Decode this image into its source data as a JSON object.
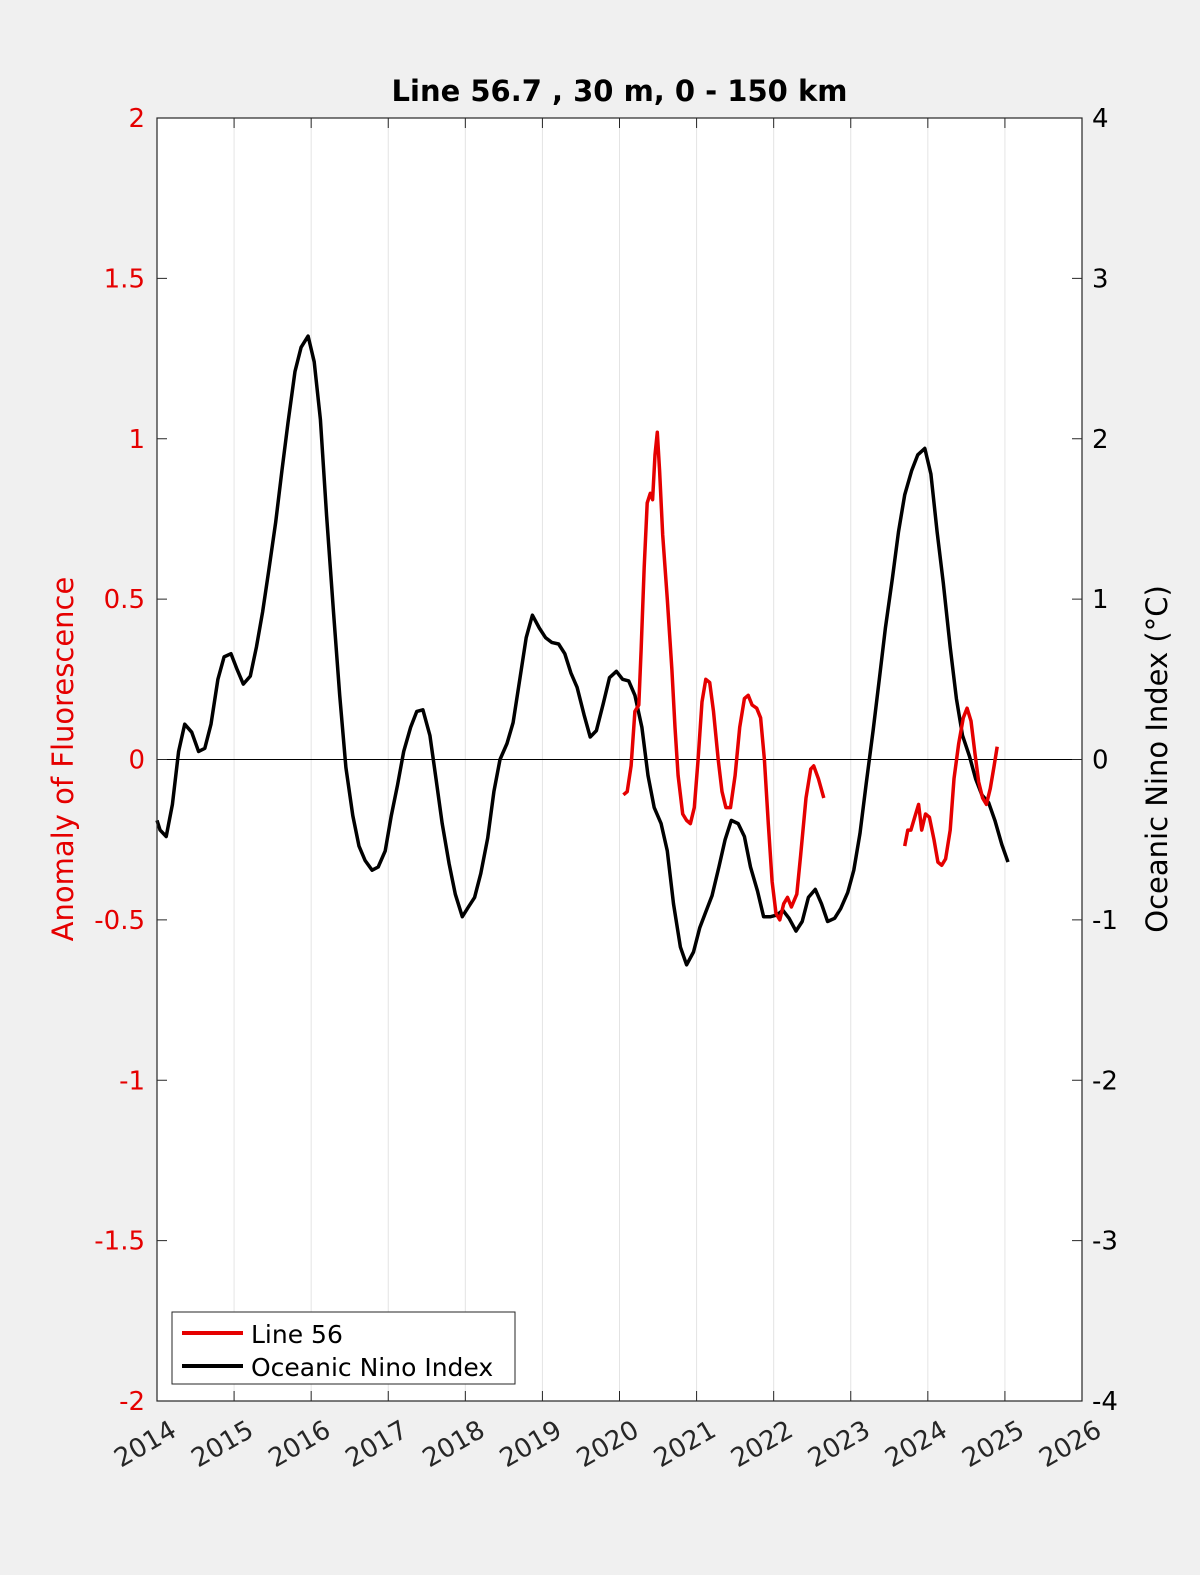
{
  "chart_data": {
    "type": "line",
    "title": "Line 56.7 , 30 m, 0 - 150 km",
    "xlabel": "",
    "ylabel_left": "Anomaly of Fluorescence",
    "ylabel_right": "Oceanic Nino Index (°C)",
    "xlim": [
      2014,
      2026
    ],
    "ylim_left": [
      -2,
      2
    ],
    "ylim_right": [
      -4,
      4
    ],
    "x_ticks": [
      "2014",
      "2015",
      "2016",
      "2017",
      "2018",
      "2019",
      "2020",
      "2021",
      "2022",
      "2023",
      "2024",
      "2025",
      "2026"
    ],
    "y_ticks_left": [
      "2",
      "1.5",
      "1",
      "0.5",
      "0",
      "-0.5",
      "-1",
      "-1.5",
      "-2"
    ],
    "y_ticks_right": [
      "4",
      "3",
      "2",
      "1",
      "0",
      "-1",
      "-2",
      "-3",
      "-4"
    ],
    "grid": "vertical",
    "zero_line": 0,
    "legend_position": "bottom-left",
    "colors": {
      "line56": "#e50000",
      "oni": "#000000",
      "left_axis": "#e50000",
      "right_axis": "#000000"
    },
    "series": [
      {
        "name": "Line 56",
        "axis": "left",
        "segments": [
          [
            [
              2020.05,
              -0.11
            ],
            [
              2020.1,
              -0.1
            ],
            [
              2020.15,
              -0.02
            ],
            [
              2020.2,
              0.15
            ],
            [
              2020.25,
              0.17
            ],
            [
              2020.28,
              0.34
            ],
            [
              2020.32,
              0.6
            ],
            [
              2020.36,
              0.8
            ],
            [
              2020.4,
              0.83
            ],
            [
              2020.43,
              0.81
            ],
            [
              2020.46,
              0.95
            ],
            [
              2020.49,
              1.02
            ],
            [
              2020.52,
              0.9
            ],
            [
              2020.56,
              0.7
            ],
            [
              2020.62,
              0.5
            ],
            [
              2020.68,
              0.28
            ],
            [
              2020.72,
              0.1
            ],
            [
              2020.76,
              -0.05
            ],
            [
              2020.82,
              -0.17
            ],
            [
              2020.87,
              -0.19
            ],
            [
              2020.92,
              -0.2
            ],
            [
              2020.97,
              -0.15
            ],
            [
              2021.02,
              0.0
            ],
            [
              2021.07,
              0.18
            ],
            [
              2021.12,
              0.25
            ],
            [
              2021.17,
              0.24
            ],
            [
              2021.22,
              0.15
            ],
            [
              2021.28,
              0.0
            ],
            [
              2021.33,
              -0.1
            ],
            [
              2021.38,
              -0.15
            ],
            [
              2021.44,
              -0.15
            ],
            [
              2021.5,
              -0.05
            ],
            [
              2021.56,
              0.1
            ],
            [
              2021.62,
              0.19
            ],
            [
              2021.67,
              0.2
            ],
            [
              2021.72,
              0.17
            ],
            [
              2021.78,
              0.16
            ],
            [
              2021.83,
              0.13
            ],
            [
              2021.88,
              0.0
            ],
            [
              2021.93,
              -0.2
            ],
            [
              2021.98,
              -0.38
            ],
            [
              2022.03,
              -0.48
            ],
            [
              2022.08,
              -0.5
            ],
            [
              2022.13,
              -0.45
            ],
            [
              2022.18,
              -0.43
            ],
            [
              2022.23,
              -0.46
            ],
            [
              2022.3,
              -0.42
            ],
            [
              2022.35,
              -0.3
            ],
            [
              2022.42,
              -0.12
            ],
            [
              2022.48,
              -0.03
            ],
            [
              2022.52,
              -0.02
            ],
            [
              2022.58,
              -0.06
            ],
            [
              2022.65,
              -0.12
            ]
          ],
          [
            [
              2023.7,
              -0.27
            ],
            [
              2023.74,
              -0.22
            ],
            [
              2023.78,
              -0.22
            ],
            [
              2023.83,
              -0.18
            ],
            [
              2023.88,
              -0.14
            ],
            [
              2023.92,
              -0.22
            ],
            [
              2023.97,
              -0.17
            ],
            [
              2024.02,
              -0.18
            ],
            [
              2024.08,
              -0.25
            ],
            [
              2024.13,
              -0.32
            ],
            [
              2024.18,
              -0.33
            ],
            [
              2024.23,
              -0.31
            ],
            [
              2024.29,
              -0.22
            ],
            [
              2024.34,
              -0.06
            ],
            [
              2024.4,
              0.05
            ],
            [
              2024.46,
              0.13
            ],
            [
              2024.51,
              0.16
            ],
            [
              2024.56,
              0.12
            ],
            [
              2024.61,
              0.02
            ],
            [
              2024.66,
              -0.07
            ],
            [
              2024.71,
              -0.12
            ],
            [
              2024.76,
              -0.14
            ],
            [
              2024.81,
              -0.09
            ],
            [
              2024.86,
              -0.02
            ],
            [
              2024.9,
              0.04
            ]
          ]
        ]
      },
      {
        "name": "Oceanic Nino Index",
        "axis": "right",
        "points": [
          [
            2014.0,
            -0.38
          ],
          [
            2014.04,
            -0.44
          ],
          [
            2014.12,
            -0.48
          ],
          [
            2014.2,
            -0.28
          ],
          [
            2014.28,
            0.05
          ],
          [
            2014.36,
            0.22
          ],
          [
            2014.45,
            0.17
          ],
          [
            2014.54,
            0.05
          ],
          [
            2014.62,
            0.07
          ],
          [
            2014.7,
            0.22
          ],
          [
            2014.79,
            0.5
          ],
          [
            2014.87,
            0.64
          ],
          [
            2014.96,
            0.66
          ],
          [
            2015.04,
            0.56
          ],
          [
            2015.12,
            0.47
          ],
          [
            2015.21,
            0.52
          ],
          [
            2015.29,
            0.7
          ],
          [
            2015.37,
            0.92
          ],
          [
            2015.45,
            1.18
          ],
          [
            2015.54,
            1.48
          ],
          [
            2015.62,
            1.8
          ],
          [
            2015.7,
            2.1
          ],
          [
            2015.79,
            2.42
          ],
          [
            2015.87,
            2.57
          ],
          [
            2015.96,
            2.64
          ],
          [
            2016.04,
            2.48
          ],
          [
            2016.12,
            2.12
          ],
          [
            2016.2,
            1.52
          ],
          [
            2016.29,
            0.92
          ],
          [
            2016.37,
            0.4
          ],
          [
            2016.45,
            -0.05
          ],
          [
            2016.54,
            -0.35
          ],
          [
            2016.62,
            -0.54
          ],
          [
            2016.7,
            -0.63
          ],
          [
            2016.79,
            -0.69
          ],
          [
            2016.87,
            -0.67
          ],
          [
            2016.96,
            -0.57
          ],
          [
            2017.04,
            -0.35
          ],
          [
            2017.12,
            -0.16
          ],
          [
            2017.2,
            0.05
          ],
          [
            2017.29,
            0.2
          ],
          [
            2017.37,
            0.3
          ],
          [
            2017.45,
            0.31
          ],
          [
            2017.54,
            0.15
          ],
          [
            2017.62,
            -0.12
          ],
          [
            2017.7,
            -0.4
          ],
          [
            2017.79,
            -0.65
          ],
          [
            2017.87,
            -0.84
          ],
          [
            2017.96,
            -0.98
          ],
          [
            2018.04,
            -0.92
          ],
          [
            2018.12,
            -0.86
          ],
          [
            2018.2,
            -0.71
          ],
          [
            2018.29,
            -0.49
          ],
          [
            2018.37,
            -0.2
          ],
          [
            2018.45,
            0.0
          ],
          [
            2018.54,
            0.1
          ],
          [
            2018.62,
            0.23
          ],
          [
            2018.7,
            0.48
          ],
          [
            2018.79,
            0.76
          ],
          [
            2018.87,
            0.9
          ],
          [
            2018.96,
            0.82
          ],
          [
            2019.04,
            0.76
          ],
          [
            2019.12,
            0.73
          ],
          [
            2019.21,
            0.72
          ],
          [
            2019.29,
            0.66
          ],
          [
            2019.37,
            0.54
          ],
          [
            2019.45,
            0.45
          ],
          [
            2019.54,
            0.28
          ],
          [
            2019.62,
            0.14
          ],
          [
            2019.7,
            0.18
          ],
          [
            2019.79,
            0.35
          ],
          [
            2019.87,
            0.51
          ],
          [
            2019.96,
            0.55
          ],
          [
            2020.04,
            0.5
          ],
          [
            2020.12,
            0.49
          ],
          [
            2020.2,
            0.4
          ],
          [
            2020.29,
            0.2
          ],
          [
            2020.37,
            -0.1
          ],
          [
            2020.45,
            -0.3
          ],
          [
            2020.54,
            -0.4
          ],
          [
            2020.62,
            -0.57
          ],
          [
            2020.7,
            -0.9
          ],
          [
            2020.79,
            -1.17
          ],
          [
            2020.87,
            -1.28
          ],
          [
            2020.96,
            -1.2
          ],
          [
            2021.04,
            -1.05
          ],
          [
            2021.12,
            -0.95
          ],
          [
            2021.2,
            -0.85
          ],
          [
            2021.29,
            -0.67
          ],
          [
            2021.37,
            -0.5
          ],
          [
            2021.45,
            -0.38
          ],
          [
            2021.54,
            -0.4
          ],
          [
            2021.62,
            -0.48
          ],
          [
            2021.7,
            -0.67
          ],
          [
            2021.79,
            -0.82
          ],
          [
            2021.87,
            -0.98
          ],
          [
            2021.96,
            -0.98
          ],
          [
            2022.04,
            -0.97
          ],
          [
            2022.12,
            -0.94
          ],
          [
            2022.2,
            -0.99
          ],
          [
            2022.29,
            -1.07
          ],
          [
            2022.37,
            -1.01
          ],
          [
            2022.45,
            -0.86
          ],
          [
            2022.54,
            -0.81
          ],
          [
            2022.62,
            -0.9
          ],
          [
            2022.7,
            -1.01
          ],
          [
            2022.79,
            -0.99
          ],
          [
            2022.87,
            -0.93
          ],
          [
            2022.96,
            -0.83
          ],
          [
            2023.04,
            -0.69
          ],
          [
            2023.12,
            -0.46
          ],
          [
            2023.2,
            -0.15
          ],
          [
            2023.29,
            0.18
          ],
          [
            2023.37,
            0.5
          ],
          [
            2023.45,
            0.82
          ],
          [
            2023.54,
            1.13
          ],
          [
            2023.62,
            1.42
          ],
          [
            2023.7,
            1.65
          ],
          [
            2023.79,
            1.8
          ],
          [
            2023.87,
            1.9
          ],
          [
            2023.96,
            1.94
          ],
          [
            2024.04,
            1.78
          ],
          [
            2024.12,
            1.42
          ],
          [
            2024.2,
            1.1
          ],
          [
            2024.29,
            0.7
          ],
          [
            2024.37,
            0.38
          ],
          [
            2024.45,
            0.15
          ],
          [
            2024.54,
            0.02
          ],
          [
            2024.62,
            -0.12
          ],
          [
            2024.7,
            -0.22
          ],
          [
            2024.79,
            -0.27
          ],
          [
            2024.87,
            -0.38
          ],
          [
            2024.96,
            -0.53
          ],
          [
            2025.04,
            -0.64
          ]
        ]
      }
    ]
  }
}
